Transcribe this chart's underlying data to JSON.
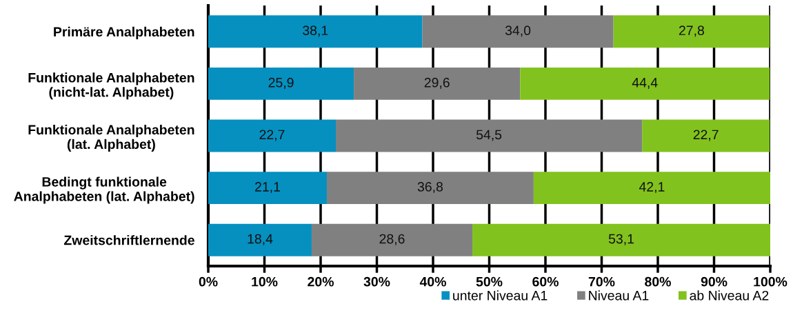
{
  "chart_data": {
    "type": "bar",
    "orientation": "horizontal",
    "stacked": true,
    "categories": [
      "Primäre Analphabeten",
      "Funktionale Analphabeten\n(nicht-lat. Alphabet)",
      "Funktionale Analphabeten\n(lat. Alphabet)",
      "Bedingt funktionale\nAnalphabeten (lat. Alphabet)",
      "Zweitschriftlernende"
    ],
    "series": [
      {
        "name": "unter Niveau A1",
        "color": "#0590c0",
        "values": [
          38.1,
          25.9,
          22.7,
          21.1,
          18.4
        ],
        "value_labels": [
          "38,1",
          "25,9",
          "22,7",
          "21,1",
          "18,4"
        ]
      },
      {
        "name": "Niveau A1",
        "color": "#808080",
        "values": [
          34.0,
          29.6,
          54.5,
          36.8,
          28.6
        ],
        "value_labels": [
          "34,0",
          "29,6",
          "54,5",
          "36,8",
          "28,6"
        ]
      },
      {
        "name": "ab Niveau A2",
        "color": "#82c21e",
        "values": [
          27.8,
          44.4,
          22.7,
          42.1,
          53.1
        ],
        "value_labels": [
          "27,8",
          "44,4",
          "22,7",
          "42,1",
          "53,1"
        ]
      }
    ],
    "xlim": [
      0,
      100
    ],
    "xticks": [
      {
        "value": 0,
        "label": "0%"
      },
      {
        "value": 10,
        "label": "10%"
      },
      {
        "value": 20,
        "label": "20%"
      },
      {
        "value": 30,
        "label": "30%"
      },
      {
        "value": 40,
        "label": "40%"
      },
      {
        "value": 50,
        "label": "50%"
      },
      {
        "value": 60,
        "label": "60%"
      },
      {
        "value": 70,
        "label": "70%"
      },
      {
        "value": 80,
        "label": "80%"
      },
      {
        "value": 90,
        "label": "90%"
      },
      {
        "value": 100,
        "label": "100%"
      }
    ],
    "grid": "x",
    "legend": "bottom right"
  }
}
